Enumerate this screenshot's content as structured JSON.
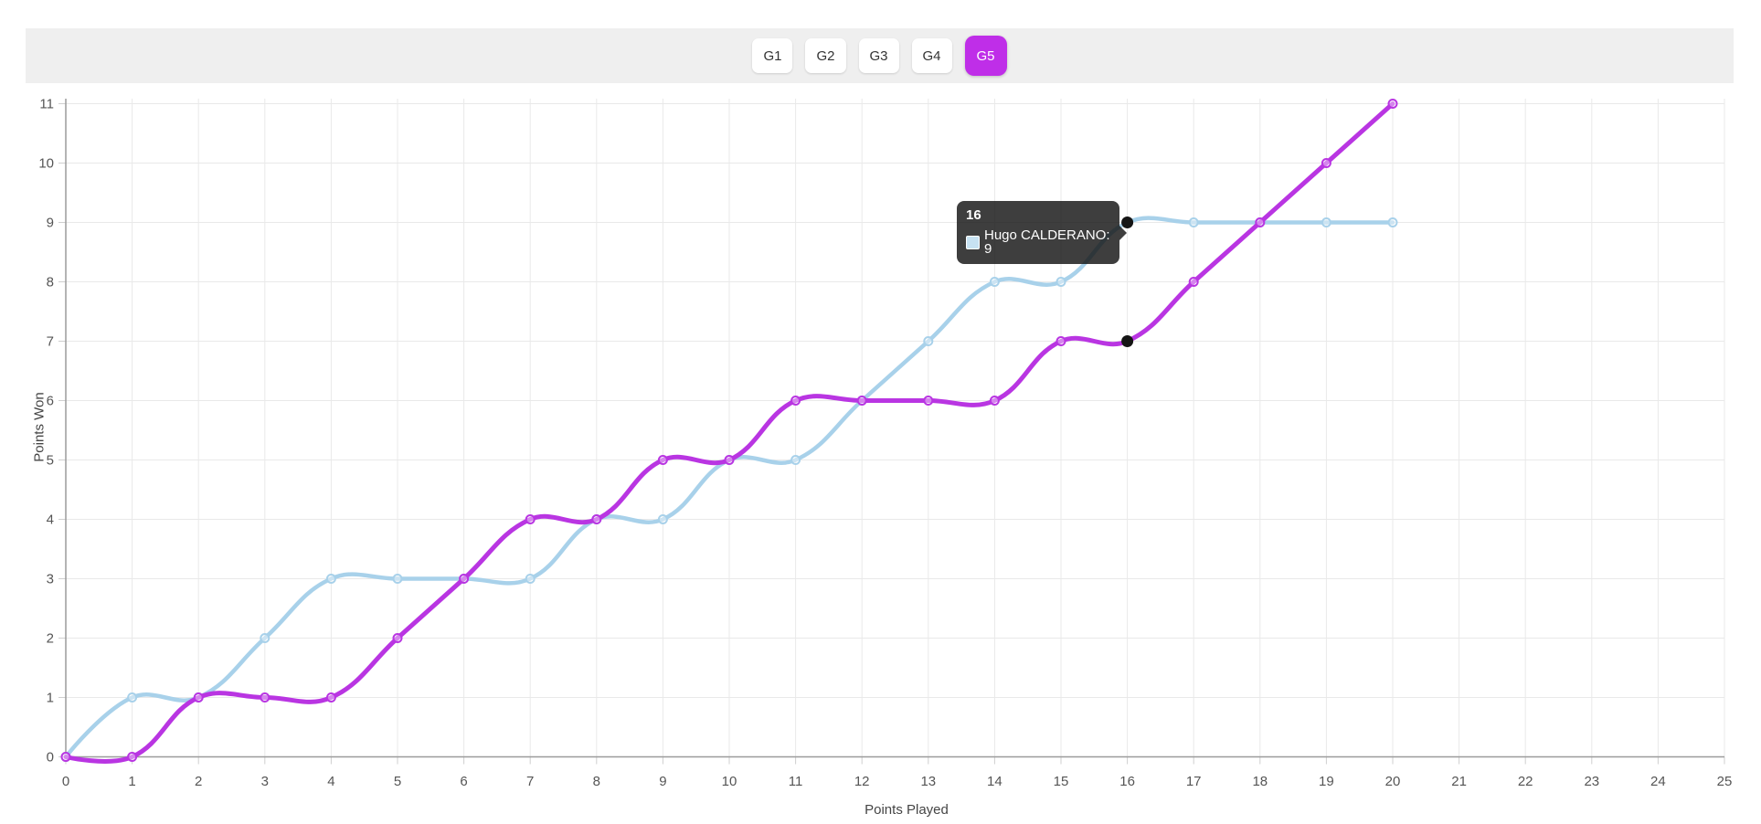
{
  "tabs": {
    "items": [
      {
        "label": "G1",
        "active": false
      },
      {
        "label": "G2",
        "active": false
      },
      {
        "label": "G3",
        "active": false
      },
      {
        "label": "G4",
        "active": false
      },
      {
        "label": "G5",
        "active": true
      }
    ],
    "active_label": "G5",
    "active_color": "#bf2ee8"
  },
  "chart_data": {
    "type": "line",
    "title": "",
    "xlabel": "Points Played",
    "ylabel": "Points Won",
    "x": [
      0,
      1,
      2,
      3,
      4,
      5,
      6,
      7,
      8,
      9,
      10,
      11,
      12,
      13,
      14,
      15,
      16,
      17,
      18,
      19,
      20
    ],
    "series": [
      {
        "name": "Hugo CALDERANO",
        "color": "#a8d1ea",
        "values": [
          0,
          1,
          1,
          2,
          3,
          3,
          3,
          3,
          4,
          4,
          5,
          5,
          6,
          7,
          8,
          8,
          9,
          9,
          9,
          9,
          9
        ]
      },
      {
        "name": "",
        "color": "#b935e2",
        "values": [
          0,
          0,
          1,
          1,
          1,
          2,
          3,
          4,
          4,
          5,
          5,
          6,
          6,
          6,
          6,
          7,
          7,
          8,
          9,
          10,
          11
        ]
      }
    ],
    "x_ticks": [
      0,
      1,
      2,
      3,
      4,
      5,
      6,
      7,
      8,
      9,
      10,
      11,
      12,
      13,
      14,
      15,
      16,
      17,
      18,
      19,
      20,
      21,
      22,
      23,
      24,
      25
    ],
    "y_ticks": [
      0,
      1,
      2,
      3,
      4,
      5,
      6,
      7,
      8,
      9,
      10,
      11
    ],
    "xlim": [
      0,
      25
    ],
    "ylim": [
      0,
      11
    ],
    "grid": true,
    "legend_position": "none",
    "curve_smoothing": true
  },
  "tooltip": {
    "title": "16",
    "entries": [
      {
        "label": "Hugo CALDERANO: 9",
        "swatch_color": "#c7e2f2"
      }
    ]
  },
  "highlight": {
    "x": 16,
    "points": [
      {
        "series": "Hugo CALDERANO",
        "y": 9
      },
      {
        "series": "",
        "y": 7
      }
    ],
    "dot_color": "#151515"
  },
  "colors": {
    "grid": "#e9e9e9",
    "axis_line": "#9b9b9b",
    "tick_mark": "#cfcfcf",
    "tick_text": "#555555",
    "tabbar_bg": "#efefef",
    "series_blue": "#a8d1ea",
    "series_purple": "#b935e2"
  }
}
